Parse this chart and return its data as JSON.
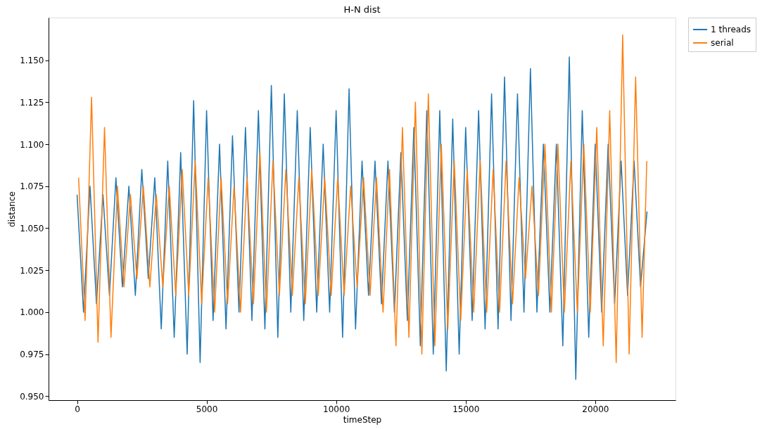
{
  "chart_data": {
    "type": "line",
    "title": "H-N dist",
    "xlabel": "timeStep",
    "ylabel": "distance",
    "x": [
      0,
      250,
      500,
      750,
      1000,
      1250,
      1500,
      1750,
      2000,
      2250,
      2500,
      2750,
      3000,
      3250,
      3500,
      3750,
      4000,
      4250,
      4500,
      4750,
      5000,
      5250,
      5500,
      5750,
      6000,
      6250,
      6500,
      6750,
      7000,
      7250,
      7500,
      7750,
      8000,
      8250,
      8500,
      8750,
      9000,
      9250,
      9500,
      9750,
      10000,
      10250,
      10500,
      10750,
      11000,
      11250,
      11500,
      11750,
      12000,
      12250,
      12500,
      12750,
      13000,
      13250,
      13500,
      13750,
      14000,
      14250,
      14500,
      14750,
      15000,
      15250,
      15500,
      15750,
      16000,
      16250,
      16500,
      16750,
      17000,
      17250,
      17500,
      17750,
      18000,
      18250,
      18500,
      18750,
      19000,
      19250,
      19500,
      19750,
      20000,
      20250,
      20500,
      20750,
      21000,
      21250,
      21500,
      21750,
      22000
    ],
    "series": [
      {
        "name": "1 threads",
        "color": "#1f77b4",
        "values": [
          1.07,
          1.0,
          1.075,
          1.005,
          1.07,
          1.01,
          1.08,
          1.015,
          1.075,
          1.01,
          1.085,
          1.02,
          1.08,
          0.99,
          1.09,
          0.985,
          1.095,
          0.975,
          1.126,
          0.97,
          1.12,
          0.995,
          1.1,
          0.99,
          1.105,
          1.0,
          1.11,
          0.995,
          1.12,
          0.99,
          1.135,
          0.985,
          1.13,
          1.0,
          1.12,
          0.995,
          1.11,
          1.0,
          1.1,
          1.0,
          1.12,
          0.985,
          1.133,
          0.99,
          1.09,
          1.01,
          1.09,
          1.005,
          1.09,
          1.0,
          1.095,
          0.995,
          1.11,
          0.98,
          1.12,
          0.975,
          1.12,
          0.965,
          1.115,
          0.975,
          1.11,
          0.995,
          1.12,
          0.99,
          1.13,
          0.99,
          1.14,
          0.995,
          1.13,
          1.0,
          1.145,
          1.0,
          1.1,
          1.0,
          1.1,
          0.98,
          1.152,
          0.96,
          1.12,
          0.985,
          1.1,
          1.0,
          1.1,
          1.005,
          1.09,
          1.01,
          1.09,
          1.015,
          1.06
        ]
      },
      {
        "name": "serial",
        "color": "#ff7f0e",
        "x": [
          60,
          310,
          560,
          810,
          1060,
          1310,
          1560,
          1810,
          2060,
          2310,
          2560,
          2810,
          3060,
          3310,
          3560,
          3810,
          4060,
          4310,
          4560,
          4810,
          5060,
          5310,
          5560,
          5810,
          6060,
          6310,
          6560,
          6810,
          7060,
          7310,
          7560,
          7810,
          8060,
          8310,
          8560,
          8810,
          9060,
          9310,
          9560,
          9810,
          10060,
          10310,
          10560,
          10810,
          11060,
          11310,
          11560,
          11810,
          12060,
          12310,
          12560,
          12810,
          13060,
          13310,
          13560,
          13810,
          14060,
          14310,
          14560,
          14810,
          15060,
          15310,
          15560,
          15810,
          16060,
          16310,
          16560,
          16810,
          17060,
          17310,
          17560,
          17810,
          18060,
          18310,
          18560,
          18810,
          19060,
          19310,
          19560,
          19810,
          20060,
          20310,
          20560,
          20810,
          21060,
          21310,
          21560,
          21810,
          21990
        ],
        "values": [
          1.08,
          0.995,
          1.128,
          0.982,
          1.11,
          0.985,
          1.075,
          1.015,
          1.07,
          1.02,
          1.075,
          1.015,
          1.07,
          1.015,
          1.075,
          1.01,
          1.085,
          1.01,
          1.09,
          1.005,
          1.08,
          1.0,
          1.08,
          1.005,
          1.075,
          1.0,
          1.08,
          1.005,
          1.095,
          1.0,
          1.09,
          1.01,
          1.085,
          1.01,
          1.08,
          1.005,
          1.085,
          1.01,
          1.08,
          1.01,
          1.08,
          1.01,
          1.075,
          1.015,
          1.08,
          1.01,
          1.08,
          1.0,
          1.085,
          0.98,
          1.11,
          0.985,
          1.125,
          0.975,
          1.13,
          0.98,
          1.1,
          0.99,
          1.09,
          0.995,
          1.085,
          1.0,
          1.09,
          1.0,
          1.085,
          1.0,
          1.09,
          1.005,
          1.08,
          1.02,
          1.075,
          1.01,
          1.1,
          1.0,
          1.1,
          1.0,
          1.09,
          1.0,
          1.1,
          1.0,
          1.11,
          0.98,
          1.12,
          0.97,
          1.165,
          0.975,
          1.14,
          0.985,
          1.09
        ]
      }
    ],
    "xlim": [
      -1100,
      23100
    ],
    "ylim": [
      0.9476,
      1.1754
    ],
    "xticks": [
      0,
      5000,
      10000,
      15000,
      20000
    ],
    "yticks": [
      {
        "value": 0.95,
        "label": "0.950"
      },
      {
        "value": 0.975,
        "label": "0.975"
      },
      {
        "value": 1.0,
        "label": "1.000"
      },
      {
        "value": 1.025,
        "label": "1.025"
      },
      {
        "value": 1.05,
        "label": "1.050"
      },
      {
        "value": 1.075,
        "label": "1.075"
      },
      {
        "value": 1.1,
        "label": "1.100"
      },
      {
        "value": 1.125,
        "label": "1.125"
      },
      {
        "value": 1.15,
        "label": "1.150"
      }
    ],
    "grid": false,
    "legend": "top right",
    "marker": "none",
    "line_style": "solid"
  }
}
